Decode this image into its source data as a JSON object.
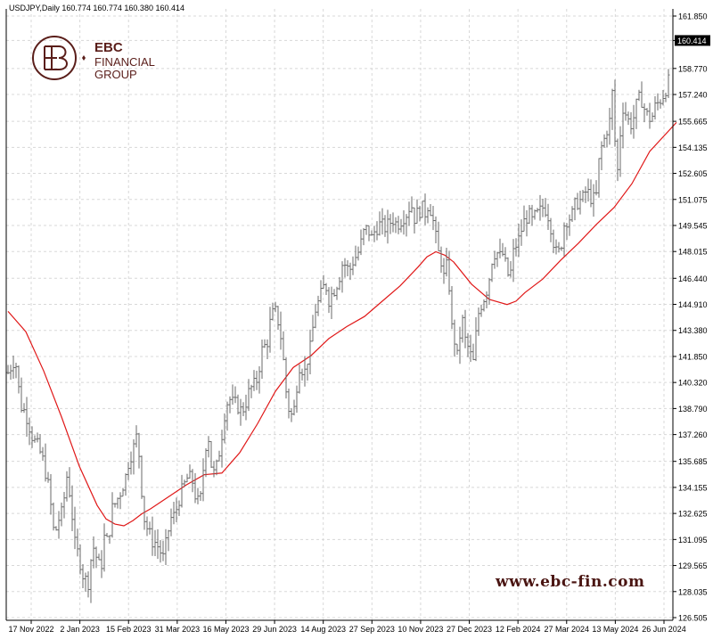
{
  "chart_data": {
    "type": "candlestick",
    "symbol_line": "USDJPY,Daily  160.774 160.774 160.380 160.414",
    "last_price_label": "160.414",
    "y_ticks": [
      "161.850",
      "160.414",
      "158.770",
      "157.240",
      "155.665",
      "154.135",
      "152.605",
      "151.075",
      "149.545",
      "148.015",
      "146.440",
      "144.910",
      "143.380",
      "141.850",
      "140.320",
      "138.790",
      "137.260",
      "135.685",
      "134.155",
      "132.625",
      "131.095",
      "129.565",
      "128.035",
      "126.505"
    ],
    "ylim": [
      126.505,
      161.85
    ],
    "x_ticks": [
      "17 Nov 2022",
      "2 Jan 2023",
      "15 Feb 2023",
      "31 Mar 2023",
      "16 May 2023",
      "29 Jun 2023",
      "14 Aug 2023",
      "27 Sep 2023",
      "10 Nov 2023",
      "27 Dec 2023",
      "12 Feb 2024",
      "27 Mar 2024",
      "13 May 2024",
      "26 Jun 2024"
    ],
    "grid": true,
    "price_path_x": [
      0,
      8,
      14,
      20,
      28,
      34,
      40,
      46,
      52,
      56,
      61,
      66,
      70,
      75,
      80,
      85,
      90,
      95,
      100,
      104,
      108,
      112,
      117,
      122,
      127,
      132,
      136,
      140,
      145,
      148,
      152,
      157,
      162,
      166,
      170,
      174,
      178,
      182,
      187,
      192,
      197,
      202,
      207,
      212,
      216,
      220,
      224,
      228,
      232,
      236,
      240,
      244,
      248,
      252,
      257,
      262,
      266,
      270,
      274,
      278,
      282,
      286,
      290,
      294,
      298,
      301,
      304,
      307,
      310,
      313,
      316,
      319,
      322,
      325,
      328,
      332,
      336,
      340,
      344,
      348,
      352,
      356,
      360,
      364,
      368,
      372,
      376,
      380,
      384,
      388,
      392,
      396,
      400,
      404,
      408,
      412,
      416,
      420,
      424,
      428,
      432,
      436,
      440,
      444,
      448,
      452,
      456,
      460,
      464,
      468,
      472,
      476,
      480,
      483,
      486,
      489,
      492,
      495,
      498,
      501,
      504,
      507,
      510,
      513,
      516,
      519,
      522,
      525,
      528,
      532,
      536,
      540,
      544,
      548,
      552,
      556,
      560,
      564,
      568,
      572,
      576,
      580,
      584,
      588,
      592,
      596,
      600,
      604,
      608,
      612,
      616,
      620,
      624,
      628,
      632,
      636,
      640,
      644,
      648,
      652,
      656,
      660,
      664,
      668,
      672,
      676,
      678,
      680,
      683,
      686,
      690,
      694,
      698,
      702,
      706,
      710,
      714,
      718,
      722,
      726,
      730,
      734,
      738,
      742
    ],
    "price_path_y": [
      140.9,
      141.8,
      139.0,
      138.5,
      137.0,
      136.5,
      135.6,
      134.0,
      131.2,
      132.2,
      132.7,
      134.8,
      133.6,
      130.8,
      130.0,
      128.8,
      128.6,
      130.8,
      129.9,
      129.2,
      131.2,
      130.9,
      132.9,
      133.4,
      134.0,
      134.8,
      135.9,
      136.3,
      137.3,
      135.5,
      132.5,
      131.6,
      131.0,
      130.9,
      130.5,
      130.0,
      131.0,
      132.3,
      132.5,
      133.5,
      134.2,
      134.8,
      134.5,
      133.2,
      133.5,
      135.8,
      137.6,
      135.5,
      134.8,
      135.9,
      137.3,
      138.9,
      139.4,
      139.1,
      139.0,
      138.6,
      139.0,
      139.7,
      140.1,
      140.2,
      141.3,
      142.5,
      142.4,
      143.8,
      144.5,
      144.4,
      143.7,
      142.7,
      141.0,
      139.2,
      138.6,
      138.3,
      139.0,
      140.8,
      141.6,
      140.7,
      141.7,
      142.5,
      144.5,
      145.0,
      145.6,
      146.2,
      145.2,
      145.6,
      146.0,
      146.6,
      147.5,
      147.0,
      147.0,
      147.6,
      147.8,
      148.5,
      149.3,
      149.3,
      148.8,
      149.3,
      149.6,
      149.5,
      149.4,
      149.7,
      149.9,
      149.6,
      149.8,
      150.1,
      150.3,
      150.9,
      150.0,
      150.3,
      150.6,
      150.3,
      150.9,
      150.1,
      148.8,
      147.9,
      147.5,
      146.5,
      147.1,
      146.0,
      143.5,
      142.8,
      141.8,
      143.1,
      143.9,
      142.8,
      142.4,
      141.9,
      141.5,
      143.1,
      144.4,
      145.1,
      145.5,
      146.5,
      147.9,
      148.0,
      147.7,
      147.9,
      146.6,
      146.8,
      148.3,
      148.5,
      149.3,
      149.9,
      150.2,
      149.8,
      150.1,
      150.3,
      150.6,
      150.5,
      149.8,
      148.6,
      147.7,
      148.2,
      149.6,
      150.0,
      150.0,
      150.7,
      151.0,
      151.0,
      151.5,
      151.4,
      151.0,
      151.3,
      153.9,
      154.4,
      155.2,
      155.8,
      157.3,
      155.8,
      151.9,
      154.5,
      156.5,
      156.0,
      155.4,
      155.9,
      156.8,
      157.1,
      156.4,
      155.9,
      155.8,
      156.5,
      156.8,
      157.1,
      157.6,
      158.1,
      159.5,
      160.8
    ],
    "moving_average_x": [
      0,
      20,
      40,
      60,
      80,
      100,
      110,
      120,
      130,
      140,
      150,
      160,
      180,
      200,
      220,
      240,
      260,
      280,
      300,
      320,
      340,
      360,
      380,
      400,
      420,
      440,
      460,
      470,
      480,
      490,
      500,
      520,
      540,
      560,
      570,
      580,
      600,
      620,
      640,
      660,
      680,
      700,
      720,
      750
    ],
    "moving_average_y": [
      144.5,
      143.3,
      141.0,
      138.3,
      135.4,
      133.1,
      132.3,
      132.0,
      131.9,
      132.2,
      132.6,
      132.9,
      133.6,
      134.3,
      134.9,
      135.0,
      136.2,
      137.9,
      139.8,
      141.2,
      141.9,
      142.9,
      143.6,
      144.2,
      145.1,
      146.0,
      147.1,
      147.7,
      148.0,
      147.8,
      147.4,
      146.1,
      145.2,
      144.9,
      145.1,
      145.6,
      146.4,
      147.5,
      148.5,
      149.6,
      150.6,
      152.0,
      153.9,
      155.6
    ],
    "bar_color": "#6a6a6a",
    "ma_color": "#e01818",
    "grid_color": "#d8d8d8"
  },
  "logo": {
    "brand_line1": "EBC",
    "brand_line2": "FINANCIAL",
    "brand_line3": "GROUP"
  },
  "watermark_url": "www.ebc-fin.com"
}
